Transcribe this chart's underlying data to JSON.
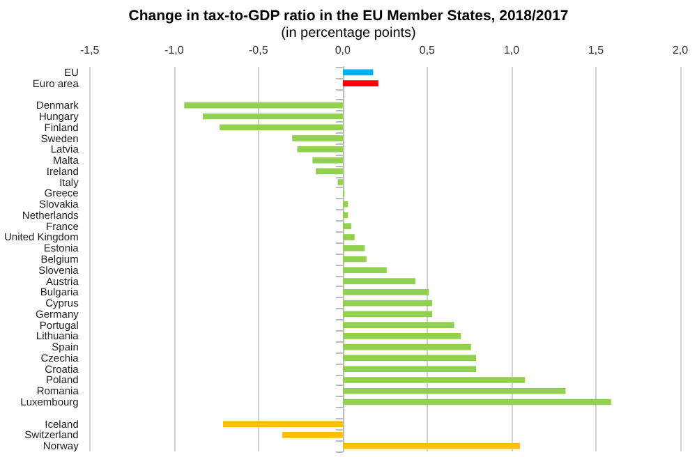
{
  "chart_data": {
    "type": "bar",
    "orientation": "horizontal",
    "title": "Change in tax-to-GDP ratio in the EU Member States, 2018/2017",
    "subtitle": "(in percentage points)",
    "categories": [
      "EU",
      "Euro area",
      null,
      "Denmark",
      "Hungary",
      "Finland",
      "Sweden",
      "Latvia",
      "Malta",
      "Ireland",
      "Italy",
      "Greece",
      "Slovakia",
      "Netherlands",
      "France",
      "United Kingdom",
      "Estonia",
      "Belgium",
      "Slovenia",
      "Austria",
      "Bulgaria",
      "Cyprus",
      "Germany",
      "Portugal",
      "Lithuania",
      "Spain",
      "Czechia",
      "Croatia",
      "Poland",
      "Romania",
      "Luxembourg",
      null,
      "Iceland",
      "Switzerland",
      "Norway"
    ],
    "values": [
      0.18,
      0.21,
      null,
      -0.94,
      -0.83,
      -0.73,
      -0.3,
      -0.27,
      -0.18,
      -0.16,
      -0.03,
      0.01,
      0.03,
      0.03,
      0.05,
      0.07,
      0.13,
      0.14,
      0.26,
      0.43,
      0.51,
      0.53,
      0.53,
      0.66,
      0.7,
      0.76,
      0.79,
      0.79,
      1.08,
      1.32,
      1.59,
      null,
      -0.71,
      -0.36,
      1.05
    ],
    "colors": [
      "#00b0f0",
      "#ff0000",
      null,
      "#92d050",
      "#92d050",
      "#92d050",
      "#92d050",
      "#92d050",
      "#92d050",
      "#92d050",
      "#92d050",
      "#92d050",
      "#92d050",
      "#92d050",
      "#92d050",
      "#92d050",
      "#92d050",
      "#92d050",
      "#92d050",
      "#92d050",
      "#92d050",
      "#92d050",
      "#92d050",
      "#92d050",
      "#92d050",
      "#92d050",
      "#92d050",
      "#92d050",
      "#92d050",
      "#92d050",
      "#92d050",
      null,
      "#ffc000",
      "#ffc000",
      "#ffc000"
    ],
    "xlim": [
      -1.5,
      2.0
    ],
    "xticks": [
      {
        "value": -1.5,
        "label": "-1,5"
      },
      {
        "value": -1.0,
        "label": "-1,0"
      },
      {
        "value": -0.5,
        "label": "-0,5"
      },
      {
        "value": 0,
        "label": "0,0"
      },
      {
        "value": 0.5,
        "label": "0,5"
      },
      {
        "value": 1.0,
        "label": "1,0"
      },
      {
        "value": 1.5,
        "label": "1,5"
      },
      {
        "value": 2.0,
        "label": "2,0"
      }
    ],
    "grid": "x"
  }
}
